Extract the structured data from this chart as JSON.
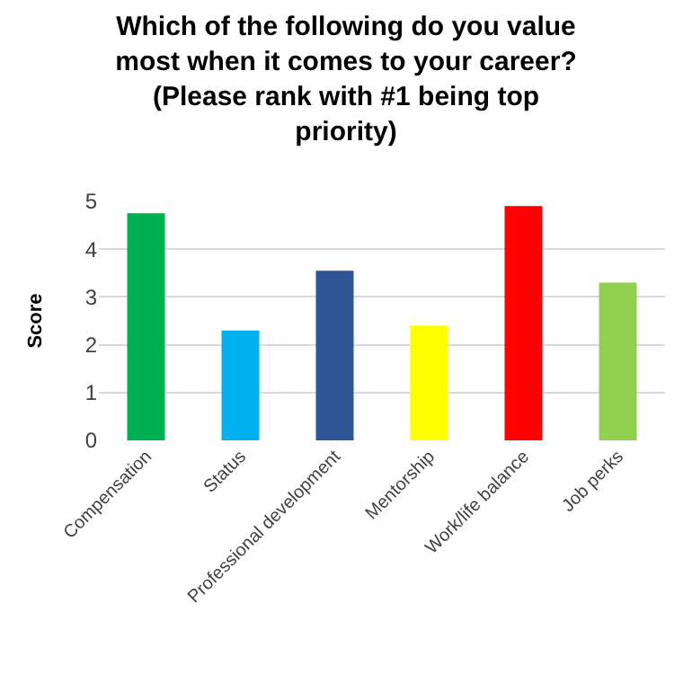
{
  "chart_data": {
    "type": "bar",
    "title": "Which of the following do you value most when it comes to your career? (Please rank with #1 being top priority)",
    "ylabel": "Score",
    "categories": [
      "Compensation",
      "Status",
      "Professional development",
      "Mentorship",
      "Work/life balance",
      "Job perks"
    ],
    "values": [
      4.75,
      2.3,
      3.55,
      2.4,
      4.9,
      3.3
    ],
    "colors": [
      "#00b050",
      "#00b0f0",
      "#2f5597",
      "#ffff00",
      "#ff0000",
      "#92d050"
    ],
    "ylim": [
      0,
      5
    ],
    "yticks": [
      0,
      1,
      2,
      3,
      4,
      5
    ],
    "grid": "y"
  }
}
